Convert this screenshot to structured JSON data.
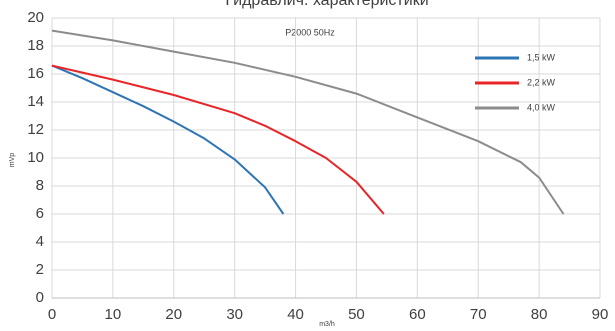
{
  "chart_data": {
    "type": "line",
    "title": "Гидравлич. характеристики",
    "annotation": "P2000 50Hz",
    "x_label": "m3/h",
    "y_label": "mVp",
    "series": [
      {
        "name": "1,5 kW",
        "color": "#2e75b6",
        "x": [
          0,
          5,
          10,
          15,
          20,
          25,
          30,
          35,
          38
        ],
        "values": [
          16.6,
          15.7,
          14.7,
          13.7,
          12.6,
          11.4,
          9.9,
          7.9,
          6
        ]
      },
      {
        "name": "2,2 kW",
        "color": "#e8262a",
        "x": [
          0,
          10,
          20,
          30,
          35,
          40,
          45,
          50,
          54.5
        ],
        "values": [
          16.6,
          15.6,
          14.5,
          13.2,
          12.3,
          11.2,
          10.0,
          8.3,
          6
        ]
      },
      {
        "name": "4,0 kW",
        "color": "#8c8c8c",
        "x": [
          0,
          10,
          20,
          30,
          40,
          50,
          60,
          70,
          77,
          80,
          84
        ],
        "values": [
          19.1,
          18.4,
          17.6,
          16.8,
          15.8,
          14.6,
          12.9,
          11.2,
          9.7,
          8.6,
          6
        ]
      }
    ],
    "xlim": [
      0,
      90
    ],
    "xticks": [
      0,
      10,
      20,
      30,
      40,
      50,
      60,
      70,
      80,
      90
    ],
    "ylim": [
      0,
      20
    ],
    "yticks": [
      0,
      2,
      4,
      6,
      8,
      10,
      12,
      14,
      16,
      18,
      20
    ],
    "grid": true,
    "legend": "upper right"
  }
}
